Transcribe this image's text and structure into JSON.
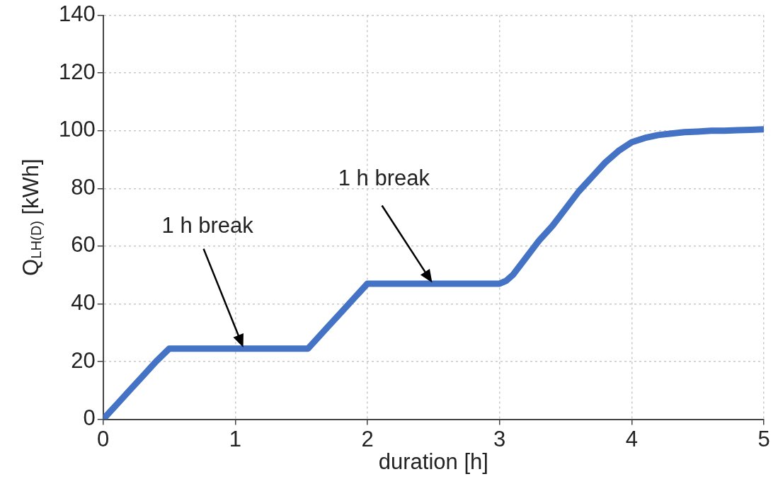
{
  "chart_data": {
    "type": "line",
    "xlabel": "duration [h]",
    "ylabel": "Q$_{LH(D)}$ [kWh]",
    "x": [
      0,
      0.05,
      0.1,
      0.2,
      0.3,
      0.4,
      0.5,
      0.8,
      1.2,
      1.55,
      1.6,
      1.7,
      1.8,
      1.9,
      2,
      2.3,
      2.7,
      3,
      3.05,
      3.1,
      3.2,
      3.3,
      3.4,
      3.5,
      3.6,
      3.7,
      3.8,
      3.9,
      4,
      4.1,
      4.2,
      4.3,
      4.4,
      4.5,
      4.6,
      4.7,
      4.8,
      4.9,
      5
    ],
    "series": [
      {
        "color": "#4472c4",
        "values": [
          0,
          2.5,
          5,
          10,
          15,
          20,
          24.5,
          24.5,
          24.5,
          24.5,
          27,
          32,
          37,
          42,
          47,
          47,
          47,
          47,
          48,
          50,
          56,
          62,
          67,
          73,
          79,
          84,
          89,
          93,
          96,
          97.5,
          98.5,
          99,
          99.5,
          99.7,
          100,
          100,
          100.2,
          100.3,
          100.5
        ]
      }
    ],
    "xlim": [
      0,
      5
    ],
    "xticks": [
      0,
      1,
      2,
      3,
      4,
      5
    ],
    "ylim": [
      0,
      140
    ],
    "yticks": [
      0,
      20,
      40,
      60,
      80,
      100,
      120,
      140
    ],
    "grid": true,
    "legend": false,
    "marker": "none",
    "line_style": "solid",
    "annotations": [
      "1 h break",
      "1 h break"
    ]
  }
}
